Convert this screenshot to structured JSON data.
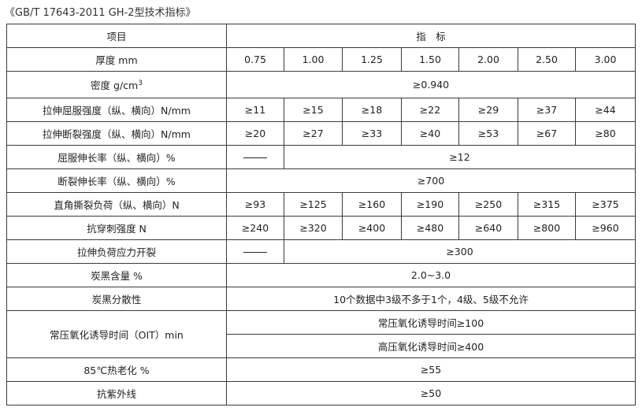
{
  "title": "《GB/T 17643-2011 GH-2型技术指标》",
  "header": {
    "item": "项目",
    "spec": "指　标"
  },
  "rows": {
    "thickness": {
      "label": "厚度 mm",
      "values": [
        "0.75",
        "1.00",
        "1.25",
        "1.50",
        "2.00",
        "2.50",
        "3.00"
      ]
    },
    "density": {
      "label": "密度 g/cm",
      "sup": "3",
      "value": "≥0.940"
    },
    "yield_strength": {
      "label": "拉伸屈服强度（纵、横向）N/mm",
      "values": [
        "≥11",
        "≥15",
        "≥18",
        "≥22",
        "≥29",
        "≥37",
        "≥44"
      ]
    },
    "break_strength": {
      "label": "拉伸断裂强度（纵、横向）N/mm",
      "values": [
        "≥20",
        "≥27",
        "≥33",
        "≥40",
        "≥53",
        "≥67",
        "≥80"
      ]
    },
    "yield_elongation": {
      "label": "屈服伸长率（纵、横向）%",
      "first": "——",
      "value": "≥12"
    },
    "break_elongation": {
      "label": "断裂伸长率（纵、横向）%",
      "value": "≥700"
    },
    "tear_load": {
      "label": "直角撕裂负荷（纵、横向）N",
      "values": [
        "≥93",
        "≥125",
        "≥160",
        "≥190",
        "≥250",
        "≥315",
        "≥375"
      ]
    },
    "puncture": {
      "label": "抗穿刺强度 N",
      "values": [
        "≥240",
        "≥320",
        "≥400",
        "≥480",
        "≥640",
        "≥800",
        "≥960"
      ]
    },
    "stress_crack": {
      "label": "拉伸负荷应力开裂",
      "first": "——",
      "value": "≥300"
    },
    "carbon_content": {
      "label": "炭黑含量 %",
      "value": "2.0~3.0"
    },
    "carbon_dispersion": {
      "label": "炭黑分散性",
      "value": "10个数据中3级不多于1个，4级、5级不允许"
    },
    "oit": {
      "label": "常压氧化诱导时间（OIT）min",
      "value1": "常压氧化诱导时间≥100",
      "value2": "高压氧化诱导时间≥400"
    },
    "aging": {
      "label": "85℃热老化 %",
      "value": "≥55"
    },
    "uv": {
      "label": "抗紫外线",
      "value": "≥50"
    }
  }
}
